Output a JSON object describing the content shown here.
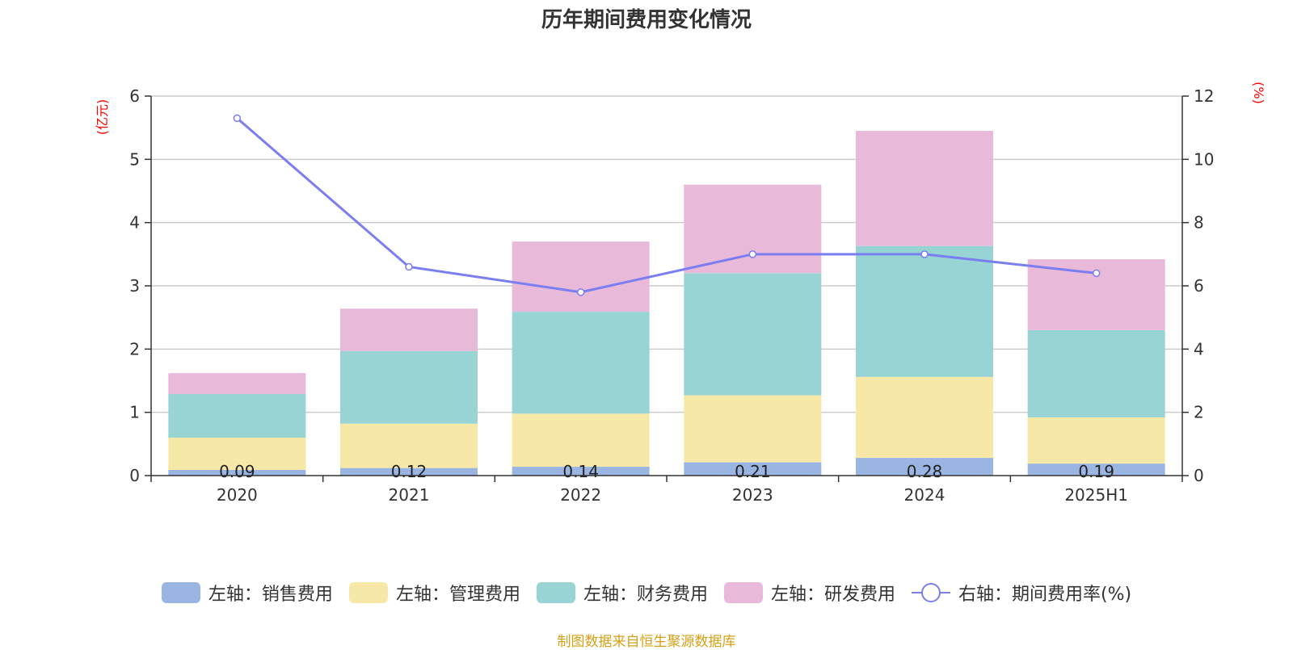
{
  "title": "历年期间费用变化情况",
  "source": "制图数据来自恒生聚源数据库",
  "chart_data": {
    "type": "bar",
    "stacked": true,
    "categories": [
      "2020",
      "2021",
      "2022",
      "2023",
      "2024",
      "2025H1"
    ],
    "left_axis": {
      "unit": "(亿元)",
      "min": 0,
      "max": 6,
      "ticks": [
        0,
        1,
        2,
        3,
        4,
        5,
        6
      ]
    },
    "right_axis": {
      "unit": "(%)",
      "min": 0,
      "max": 12,
      "ticks": [
        0,
        2,
        4,
        6,
        8,
        10,
        12
      ]
    },
    "grid": true,
    "legend_position": "bottom",
    "series": [
      {
        "name": "左轴：销售费用",
        "color": "#9bb5e3",
        "axis": "left",
        "values": [
          0.09,
          0.12,
          0.14,
          0.21,
          0.28,
          0.19
        ],
        "show_labels": true
      },
      {
        "name": "左轴：管理费用",
        "color": "#f8e8a8",
        "axis": "left",
        "values": [
          0.51,
          0.7,
          0.84,
          1.06,
          1.28,
          0.73
        ]
      },
      {
        "name": "左轴：财务费用",
        "color": "#98d4d4",
        "axis": "left",
        "values": [
          0.69,
          1.15,
          1.61,
          1.93,
          2.07,
          1.38
        ]
      },
      {
        "name": "左轴：研发费用",
        "color": "#e8b9d9",
        "axis": "left",
        "values": [
          0.33,
          0.67,
          1.11,
          1.4,
          1.82,
          1.12
        ]
      }
    ],
    "line_series": {
      "name": "右轴：期间费用率(%)",
      "color": "#7a7ef0",
      "axis": "right",
      "values": [
        11.3,
        6.6,
        5.8,
        7.0,
        7.0,
        6.4
      ]
    }
  }
}
